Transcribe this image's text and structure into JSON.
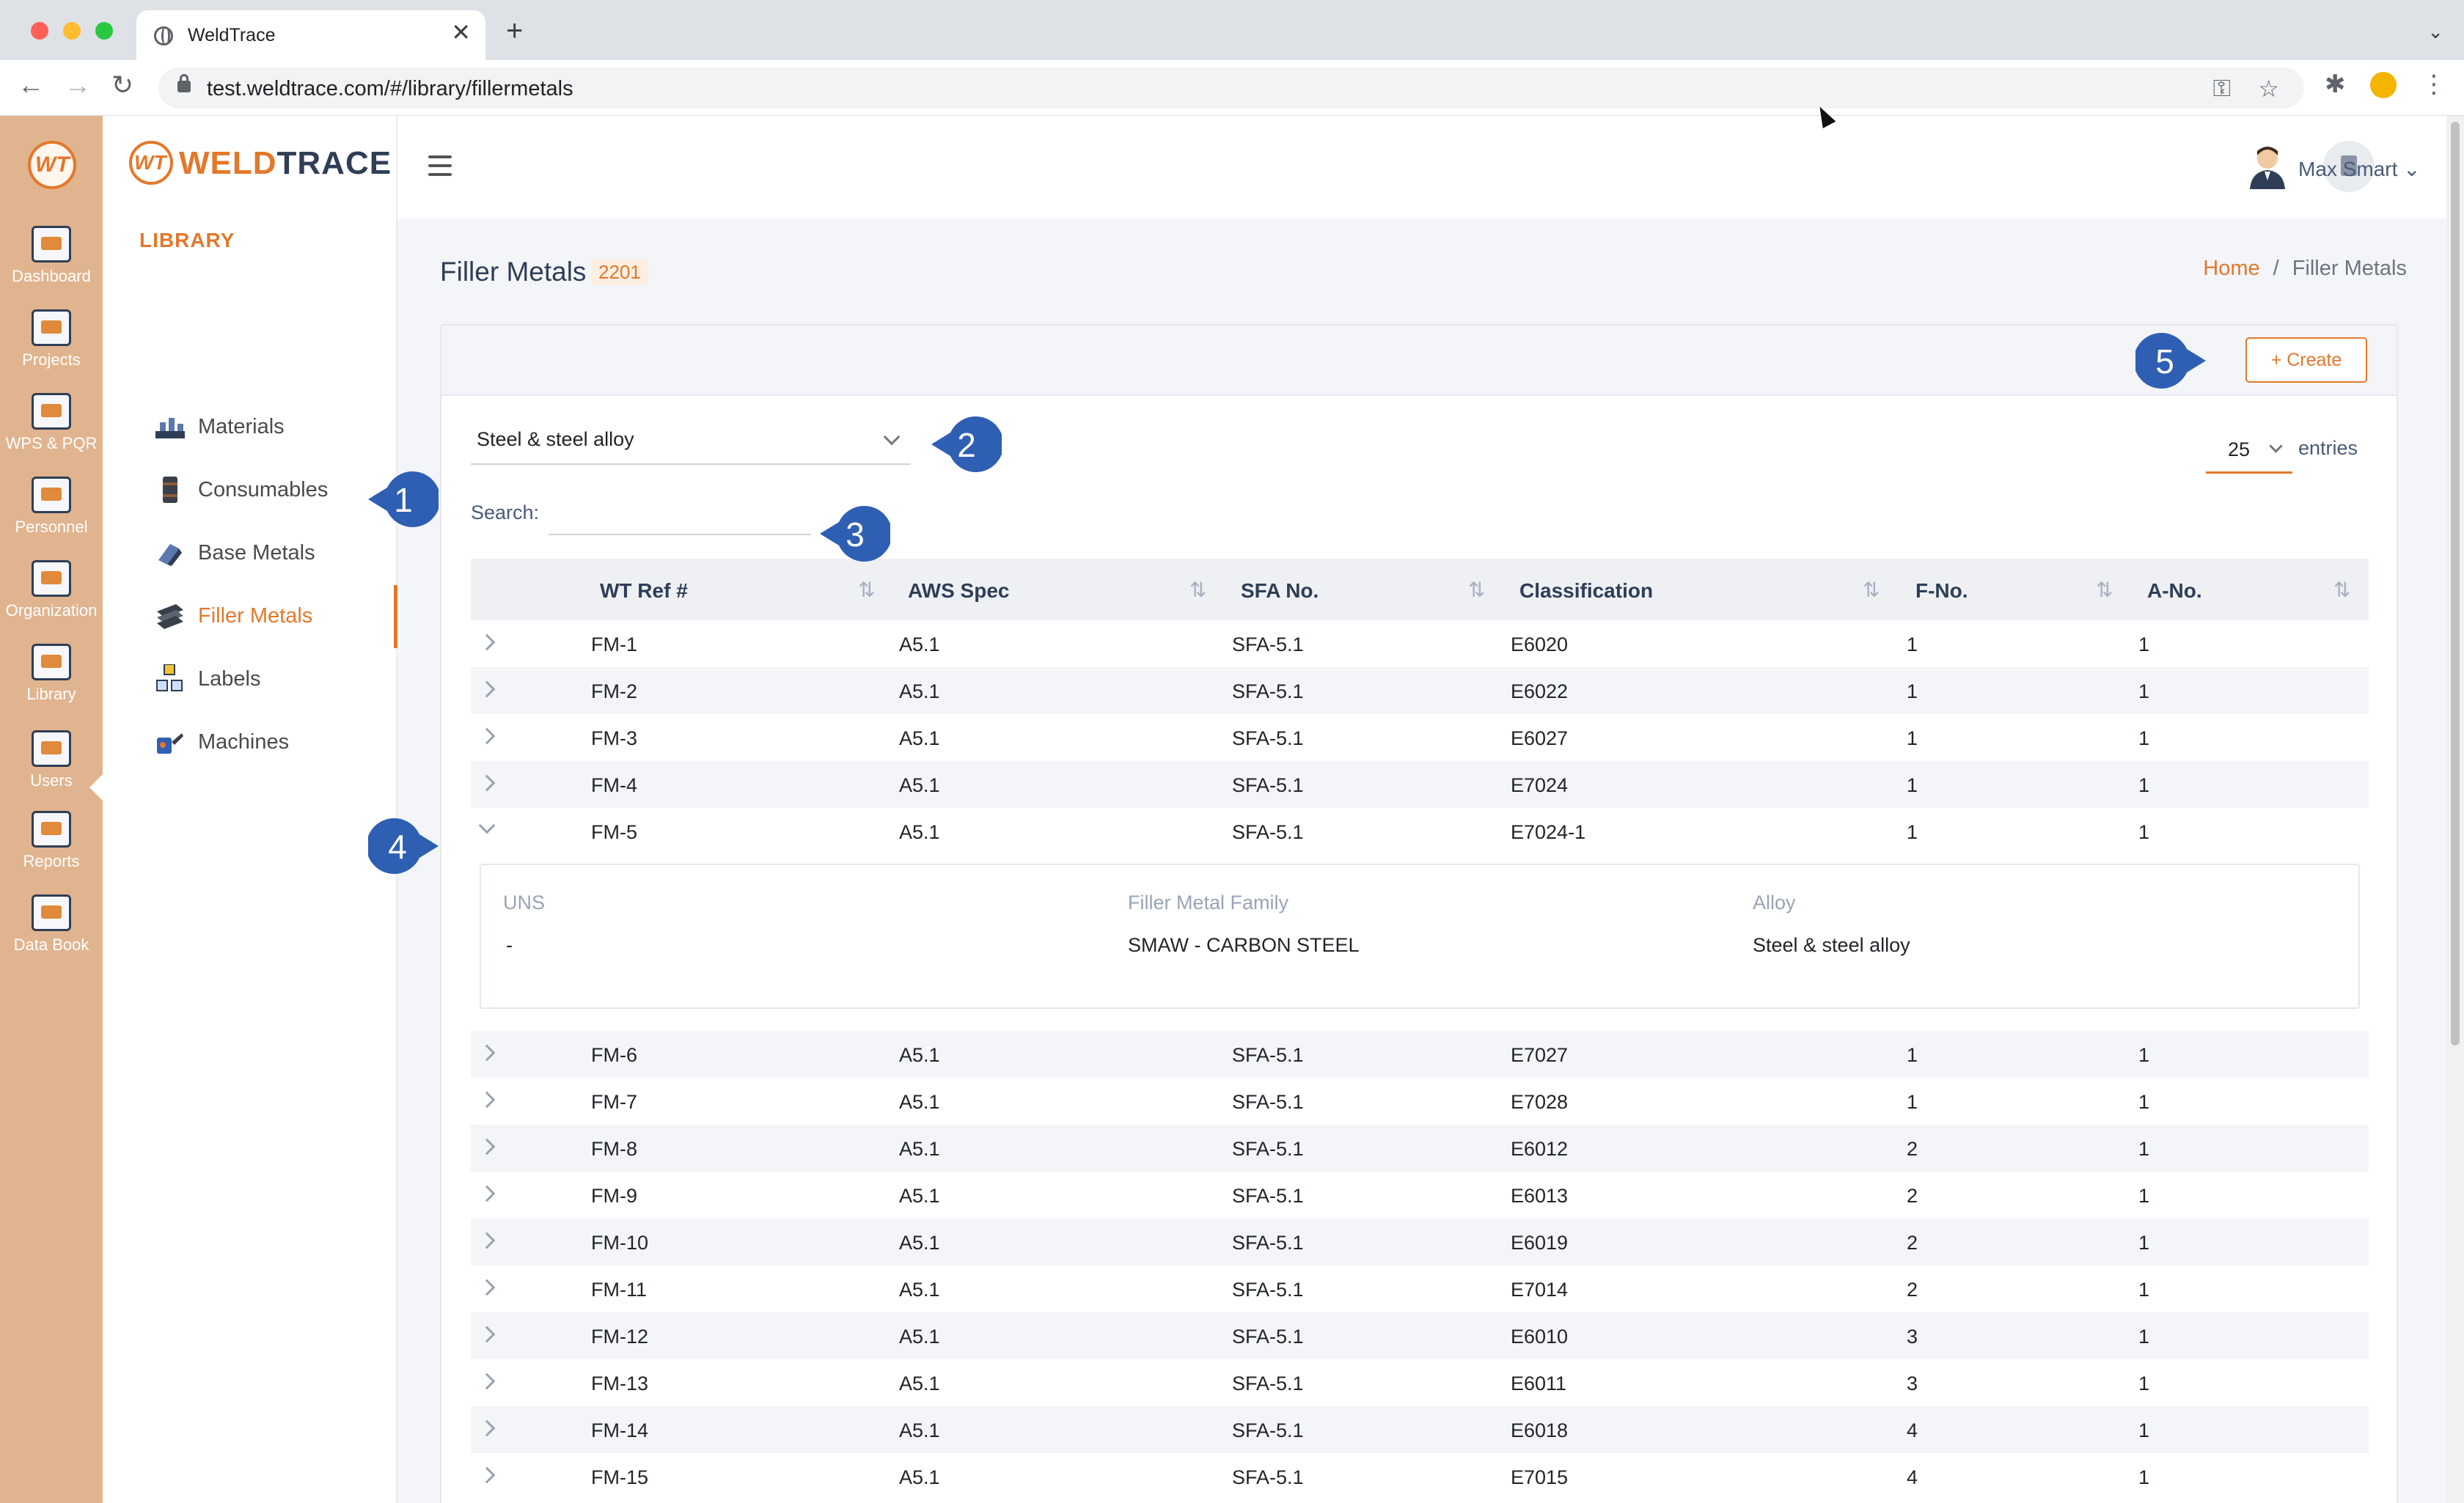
{
  "browser": {
    "tab_title": "WeldTrace",
    "url": "test.weldtrace.com/#/library/fillermetals",
    "close_glyph": "✕",
    "new_tab_glyph": "+",
    "menu_glyph": "⌄"
  },
  "rail": {
    "items": [
      {
        "label": "Dashboard",
        "icon": "dashboard-icon"
      },
      {
        "label": "Projects",
        "icon": "projects-icon"
      },
      {
        "label": "WPS & PQR",
        "icon": "wps-pqr-icon"
      },
      {
        "label": "Personnel",
        "icon": "personnel-icon"
      },
      {
        "label": "Organization",
        "icon": "organization-icon"
      },
      {
        "label": "Library",
        "icon": "library-icon"
      },
      {
        "label": "Users",
        "icon": "users-icon"
      },
      {
        "label": "Reports",
        "icon": "reports-icon"
      },
      {
        "label": "Data Book",
        "icon": "data-book-icon"
      }
    ]
  },
  "sidebar": {
    "brand_prefix": "WELD",
    "brand_suffix": "TRACE",
    "section_title": "LIBRARY",
    "items": [
      {
        "label": "Materials",
        "icon": "materials-icon"
      },
      {
        "label": "Consumables",
        "icon": "consumables-icon"
      },
      {
        "label": "Base Metals",
        "icon": "base-metals-icon"
      },
      {
        "label": "Filler Metals",
        "icon": "filler-metals-icon",
        "active": true
      },
      {
        "label": "Labels",
        "icon": "labels-icon"
      },
      {
        "label": "Machines",
        "icon": "machines-icon"
      }
    ]
  },
  "header": {
    "user_name": "Max Smart ⌄"
  },
  "page": {
    "title": "Filler Metals",
    "count": "2201",
    "breadcrumb_home": "Home",
    "breadcrumb_sep": "/",
    "breadcrumb_current": "Filler Metals"
  },
  "toolbar": {
    "create_label": "+ Create",
    "alloy_filter": "Steel & steel alloy",
    "entries_value": "25",
    "entries_label": "entries",
    "search_label": "Search:",
    "search_value": ""
  },
  "table": {
    "columns": [
      "WT Ref #",
      "AWS Spec",
      "SFA No.",
      "Classification",
      "F-No.",
      "A-No."
    ],
    "sort_glyph": "⇅",
    "rows_before": [
      [
        "FM-1",
        "A5.1",
        "SFA-5.1",
        "E6020",
        "1",
        "1"
      ],
      [
        "FM-2",
        "A5.1",
        "SFA-5.1",
        "E6022",
        "1",
        "1"
      ],
      [
        "FM-3",
        "A5.1",
        "SFA-5.1",
        "E6027",
        "1",
        "1"
      ],
      [
        "FM-4",
        "A5.1",
        "SFA-5.1",
        "E7024",
        "1",
        "1"
      ],
      [
        "FM-5",
        "A5.1",
        "SFA-5.1",
        "E7024-1",
        "1",
        "1"
      ]
    ],
    "expanded_detail": {
      "labels": [
        "UNS",
        "Filler Metal Family",
        "Alloy"
      ],
      "values": [
        "-",
        "SMAW - CARBON STEEL",
        "Steel & steel alloy"
      ]
    },
    "rows_after": [
      [
        "FM-6",
        "A5.1",
        "SFA-5.1",
        "E7027",
        "1",
        "1"
      ],
      [
        "FM-7",
        "A5.1",
        "SFA-5.1",
        "E7028",
        "1",
        "1"
      ],
      [
        "FM-8",
        "A5.1",
        "SFA-5.1",
        "E6012",
        "2",
        "1"
      ],
      [
        "FM-9",
        "A5.1",
        "SFA-5.1",
        "E6013",
        "2",
        "1"
      ],
      [
        "FM-10",
        "A5.1",
        "SFA-5.1",
        "E6019",
        "2",
        "1"
      ],
      [
        "FM-11",
        "A5.1",
        "SFA-5.1",
        "E7014",
        "2",
        "1"
      ],
      [
        "FM-12",
        "A5.1",
        "SFA-5.1",
        "E6010",
        "3",
        "1"
      ],
      [
        "FM-13",
        "A5.1",
        "SFA-5.1",
        "E6011",
        "3",
        "1"
      ],
      [
        "FM-14",
        "A5.1",
        "SFA-5.1",
        "E6018",
        "4",
        "1"
      ],
      [
        "FM-15",
        "A5.1",
        "SFA-5.1",
        "E7015",
        "4",
        "1"
      ]
    ]
  },
  "callouts": [
    "1",
    "2",
    "3",
    "4",
    "5"
  ],
  "colors": {
    "accent": "#e3782b",
    "rail": "#e0b48e",
    "callout": "#2f5fb3",
    "navy": "#2f3e56"
  }
}
